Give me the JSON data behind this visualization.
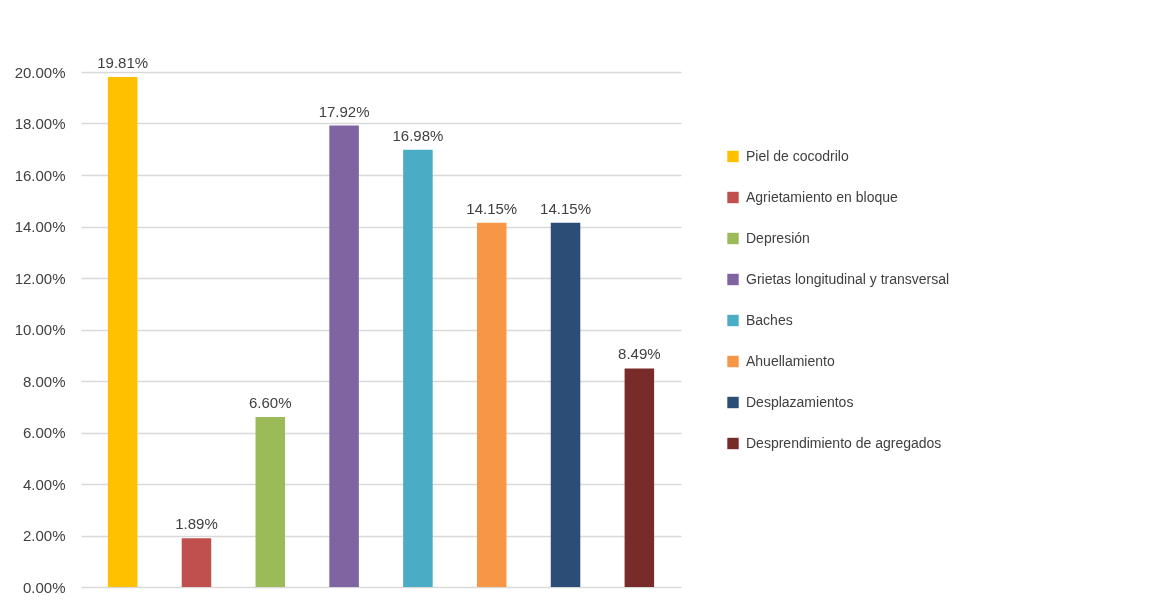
{
  "chart_data": {
    "type": "bar",
    "categories": [
      null
    ],
    "series": [
      {
        "name": "Piel de cocodrilo",
        "color": "#ffc000",
        "values": [
          19.81
        ],
        "value_labels": [
          "19.81%"
        ]
      },
      {
        "name": "Agrietamiento en bloque",
        "color": "#c0504d",
        "values": [
          1.89
        ],
        "value_labels": [
          "1.89%"
        ]
      },
      {
        "name": "Depresión",
        "color": "#9bbb59",
        "values": [
          6.6
        ],
        "value_labels": [
          "6.60%"
        ]
      },
      {
        "name": " Grietas longitudinal y transversal",
        "color": "#8064a2",
        "values": [
          17.92
        ],
        "value_labels": [
          "17.92%"
        ]
      },
      {
        "name": "Baches",
        "color": "#4bacc6",
        "values": [
          16.98
        ],
        "value_labels": [
          "16.98%"
        ]
      },
      {
        "name": " Ahuellamiento",
        "color": "#f79646",
        "values": [
          14.15
        ],
        "value_labels": [
          "14.15%"
        ]
      },
      {
        "name": "Desplazamientos",
        "color": "#2c4d75",
        "values": [
          14.15
        ],
        "value_labels": [
          "14.15%"
        ]
      },
      {
        "name": "Desprendimiento de agregados",
        "color": "#772c2a",
        "values": [
          8.49
        ],
        "value_labels": [
          "8.49%"
        ]
      }
    ],
    "ylim": [
      0,
      20
    ],
    "yticks": [
      {
        "value": 0,
        "label": "0.00%"
      },
      {
        "value": 2,
        "label": "2.00%"
      },
      {
        "value": 4,
        "label": "4.00%"
      },
      {
        "value": 6,
        "label": "6.00%"
      },
      {
        "value": 8,
        "label": "8.00%"
      },
      {
        "value": 10,
        "label": "10.00%"
      },
      {
        "value": 12,
        "label": "12.00%"
      },
      {
        "value": 14,
        "label": "14.00%"
      },
      {
        "value": 16,
        "label": "16.00%"
      },
      {
        "value": 18,
        "label": "18.00%"
      },
      {
        "value": 20,
        "label": "20.00%"
      }
    ],
    "grid": "y",
    "legend": "right",
    "tick_labels": "y"
  }
}
